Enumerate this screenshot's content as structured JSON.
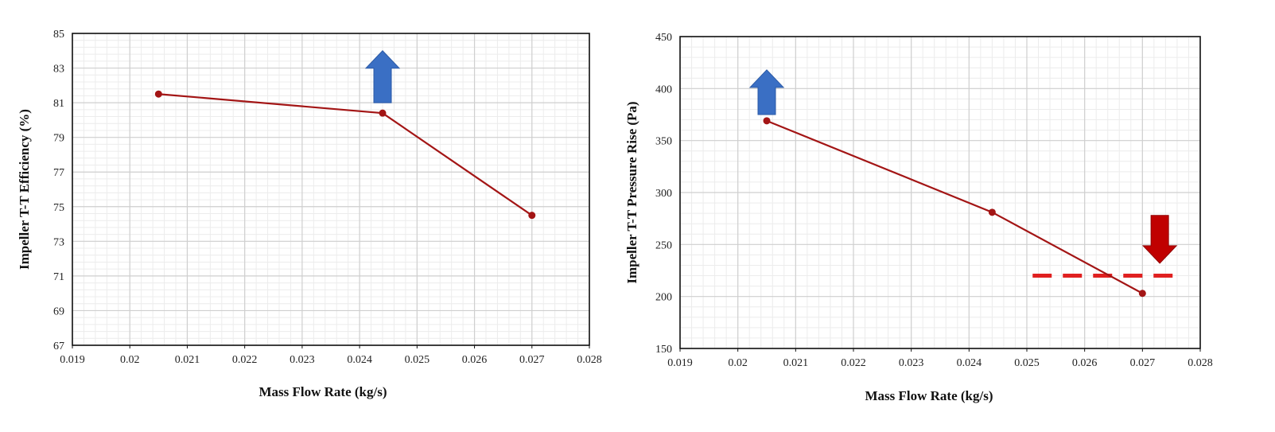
{
  "chart_data": [
    {
      "type": "line",
      "title": "",
      "xlabel": "Mass Flow Rate (kg/s)",
      "ylabel": "Impeller T-T Efficiency (%)",
      "xlim": [
        0.019,
        0.028
      ],
      "ylim": [
        67,
        85
      ],
      "xticks": [
        "0.019",
        "0.02",
        "0.021",
        "0.022",
        "0.023",
        "0.024",
        "0.025",
        "0.026",
        "0.027",
        "0.028"
      ],
      "yticks": [
        "67",
        "69",
        "71",
        "73",
        "75",
        "77",
        "79",
        "81",
        "83",
        "85"
      ],
      "grid": true,
      "series": [
        {
          "x": [
            0.0205,
            0.0244,
            0.027
          ],
          "y": [
            81.5,
            80.4,
            74.5
          ],
          "color": "#a31515"
        }
      ],
      "annotations": [
        {
          "type": "arrow-up",
          "x": 0.0244,
          "y_from": 81,
          "y_to": 84,
          "color": "#3a6fc4"
        }
      ]
    },
    {
      "type": "line",
      "title": "",
      "xlabel": "Mass Flow Rate (kg/s)",
      "ylabel": "Impeller T-T Pressure Rise (Pa)",
      "xlim": [
        0.019,
        0.028
      ],
      "ylim": [
        150,
        450
      ],
      "xticks": [
        "0.019",
        "0.02",
        "0.021",
        "0.022",
        "0.023",
        "0.024",
        "0.025",
        "0.026",
        "0.027",
        "0.028"
      ],
      "yticks": [
        "150",
        "200",
        "250",
        "300",
        "350",
        "400",
        "450"
      ],
      "grid": true,
      "series": [
        {
          "x": [
            0.0205,
            0.0244,
            0.027
          ],
          "y": [
            369,
            281,
            203
          ],
          "color": "#a31515"
        }
      ],
      "annotations": [
        {
          "type": "arrow-up",
          "x": 0.0205,
          "y_from": 375,
          "y_to": 418,
          "color": "#3a6fc4"
        },
        {
          "type": "arrow-down",
          "x": 0.0273,
          "y_from": 278,
          "y_to": 232,
          "color": "#c00000"
        },
        {
          "type": "dashed-line",
          "y": 220,
          "x_from": 0.0251,
          "x_to": 0.0277,
          "color": "#e02020"
        }
      ]
    }
  ]
}
